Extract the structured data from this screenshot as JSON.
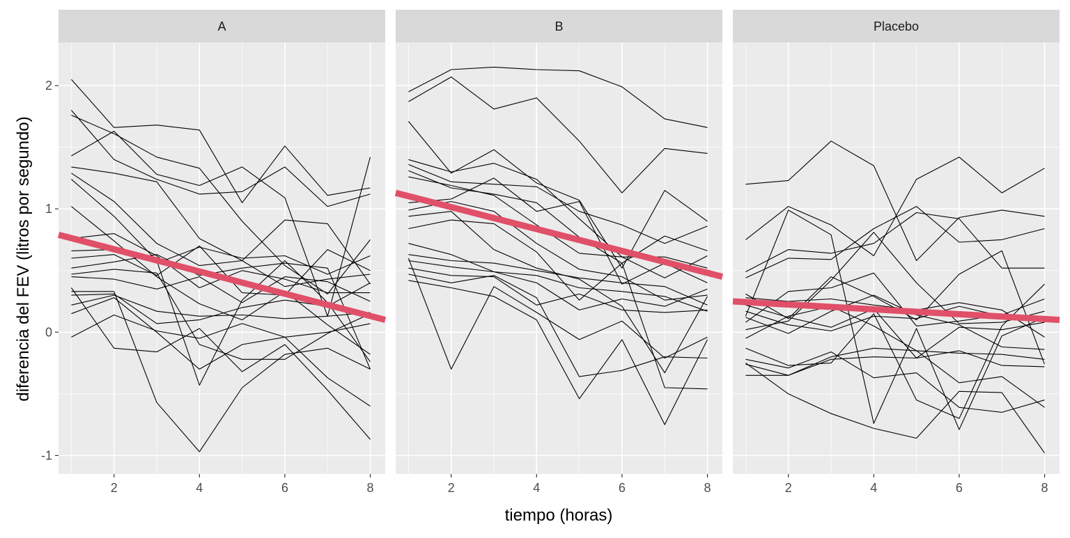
{
  "chart_data": {
    "type": "line",
    "xlabel": "tiempo (horas)",
    "ylabel": "diferencia del FEV (litros por segundo)",
    "xlim": [
      0.7,
      8.35
    ],
    "ylim": [
      -1.15,
      2.35
    ],
    "x_ticks": [
      2,
      4,
      6,
      8
    ],
    "y_ticks": [
      2,
      1,
      0,
      -1
    ],
    "grid": true,
    "trend_color": "#e05068",
    "line_color": "#000000",
    "x": [
      1,
      2,
      3,
      4,
      5,
      6,
      7,
      8
    ],
    "panels": [
      {
        "label": "A",
        "trend": [
          0.79,
          0.1
        ],
        "series": [
          [
            2.05,
            1.66,
            1.68,
            1.64,
            1.05,
            1.51,
            1.11,
            1.17
          ],
          [
            1.8,
            1.4,
            1.24,
            1.12,
            1.14,
            1.34,
            1.02,
            1.12
          ],
          [
            1.76,
            1.61,
            1.42,
            1.33,
            0.9,
            0.54,
            0.31,
            0.75
          ],
          [
            1.43,
            1.63,
            1.28,
            1.19,
            1.34,
            1.09,
            0.13,
            1.42
          ],
          [
            1.34,
            1.29,
            1.22,
            0.76,
            0.58,
            0.37,
            0.43,
            0.47
          ],
          [
            1.29,
            1.06,
            0.72,
            0.54,
            0.58,
            0.91,
            0.88,
            0.39
          ],
          [
            1.24,
            0.94,
            0.58,
            -0.43,
            0.26,
            0.58,
            0.24,
            -0.24
          ],
          [
            1.02,
            0.74,
            0.45,
            0.23,
            0.1,
            0.33,
            0.06,
            -0.18
          ],
          [
            0.76,
            0.8,
            0.62,
            0.36,
            0.5,
            0.43,
            0.32,
            0.32
          ],
          [
            0.66,
            0.67,
            0.56,
            0.69,
            0.6,
            0.62,
            0.47,
            0.62
          ],
          [
            0.6,
            0.63,
            0.46,
            0.7,
            0.32,
            0.3,
            0.67,
            0.5
          ],
          [
            0.52,
            0.57,
            0.63,
            0.46,
            0.52,
            0.56,
            0.52,
            -0.3
          ],
          [
            0.47,
            0.51,
            0.48,
            -0.1,
            -0.22,
            -0.22,
            -0.01,
            0.15
          ],
          [
            0.45,
            0.43,
            0.35,
            0.45,
            0.24,
            0.45,
            0.41,
            0.25
          ],
          [
            0.33,
            0.33,
            -0.57,
            -0.97,
            -0.45,
            -0.18,
            -0.13,
            -0.3
          ],
          [
            0.3,
            0.31,
            0.07,
            0.1,
            0.2,
            0.26,
            0.21,
            0.4
          ],
          [
            0.22,
            0.3,
            0.17,
            0.13,
            0.14,
            0.11,
            0.13,
            0.16
          ],
          [
            0.15,
            0.28,
            0.0,
            -0.3,
            -0.1,
            -0.04,
            0.0,
            0.07
          ],
          [
            -0.04,
            0.14,
            0.01,
            -0.05,
            0.07,
            -0.04,
            -0.37,
            -0.6
          ],
          [
            0.36,
            -0.13,
            -0.16,
            0.03,
            -0.32,
            -0.1,
            -0.47,
            -0.87
          ]
        ]
      },
      {
        "label": "B",
        "trend": [
          1.13,
          0.45
        ],
        "series": [
          [
            1.95,
            2.13,
            2.15,
            2.13,
            2.12,
            1.99,
            1.73,
            1.66
          ],
          [
            1.87,
            2.07,
            1.81,
            1.9,
            1.55,
            1.13,
            1.49,
            1.45
          ],
          [
            1.71,
            1.29,
            1.48,
            1.21,
            1.07,
            0.52,
            1.15,
            0.9
          ],
          [
            1.4,
            1.3,
            1.37,
            1.24,
            0.92,
            0.61,
            0.44,
            0.62
          ],
          [
            1.36,
            1.22,
            1.2,
            1.18,
            0.98,
            0.87,
            0.72,
            0.86
          ],
          [
            1.31,
            1.17,
            1.12,
            1.05,
            0.77,
            0.56,
            0.78,
            0.66
          ],
          [
            1.26,
            1.19,
            1.11,
            0.87,
            0.64,
            0.61,
            0.61,
            0.52
          ],
          [
            1.05,
            1.08,
            1.25,
            0.98,
            1.06,
            0.39,
            0.56,
            0.4
          ],
          [
            0.99,
            1.06,
            0.98,
            0.72,
            0.51,
            0.45,
            0.26,
            0.3
          ],
          [
            0.94,
            0.98,
            0.67,
            0.52,
            0.43,
            0.21,
            -0.33,
            0.29
          ],
          [
            0.84,
            0.91,
            0.88,
            0.65,
            0.26,
            0.56,
            -0.45,
            -0.46
          ],
          [
            0.72,
            0.63,
            0.49,
            0.4,
            0.18,
            0.27,
            0.21,
            0.35
          ],
          [
            0.63,
            0.58,
            0.56,
            0.5,
            0.44,
            0.4,
            0.37,
            0.22
          ],
          [
            0.58,
            0.53,
            0.49,
            0.46,
            0.36,
            0.33,
            0.29,
            0.17
          ],
          [
            0.52,
            0.46,
            0.45,
            0.22,
            0.31,
            0.18,
            0.16,
            0.18
          ],
          [
            0.47,
            0.4,
            0.46,
            0.28,
            -0.36,
            -0.31,
            -0.2,
            -0.21
          ],
          [
            0.42,
            0.36,
            0.29,
            0.1,
            -0.54,
            -0.06,
            -0.75,
            -0.06
          ],
          [
            0.6,
            -0.3,
            0.37,
            0.16,
            -0.06,
            0.09,
            -0.21,
            -0.04
          ]
        ]
      },
      {
        "label": "Placebo",
        "trend": [
          0.25,
          0.1
        ],
        "series": [
          [
            1.2,
            1.23,
            1.55,
            1.35,
            0.58,
            0.93,
            0.99,
            0.94
          ],
          [
            0.75,
            1.02,
            0.87,
            0.62,
            1.24,
            1.42,
            1.13,
            1.33
          ],
          [
            0.49,
            0.67,
            0.64,
            0.72,
            0.97,
            0.92,
            0.52,
            0.52
          ],
          [
            0.44,
            0.6,
            0.59,
            0.84,
            1.02,
            0.73,
            0.75,
            0.84
          ],
          [
            0.31,
            0.11,
            0.45,
            0.29,
            0.1,
            0.47,
            0.66,
            -0.26
          ],
          [
            0.28,
            0.25,
            0.27,
            0.22,
            0.18,
            0.24,
            0.18,
            -0.04
          ],
          [
            0.22,
            0.12,
            0.04,
            0.19,
            -0.21,
            0.04,
            0.02,
            0.08
          ],
          [
            0.17,
            0.06,
            0.01,
            0.13,
            0.11,
            0.21,
            0.13,
            0.1
          ],
          [
            0.12,
            -0.01,
            0.17,
            0.3,
            0.14,
            0.06,
            -0.12,
            -0.14
          ],
          [
            0.08,
            0.33,
            0.36,
            0.48,
            0.05,
            0.09,
            0.14,
            0.27
          ],
          [
            0.02,
            0.09,
            0.42,
            0.81,
            0.4,
            0.07,
            0.08,
            0.17
          ],
          [
            -0.05,
            0.13,
            0.21,
            0.05,
            -0.15,
            -0.41,
            -0.36,
            -0.61
          ],
          [
            -0.13,
            -0.27,
            -0.25,
            0.15,
            -0.55,
            -0.7,
            0.05,
            0.39
          ],
          [
            -0.22,
            -0.29,
            -0.16,
            -0.37,
            -0.33,
            -0.61,
            -0.65,
            -0.55
          ],
          [
            -0.26,
            -0.35,
            -0.2,
            -0.13,
            -0.15,
            -0.17,
            -0.18,
            -0.22
          ],
          [
            -0.35,
            -0.35,
            -0.22,
            -0.2,
            -0.21,
            -0.15,
            -0.27,
            -0.28
          ],
          [
            -0.25,
            -0.5,
            -0.66,
            -0.78,
            -0.86,
            -0.48,
            -0.49,
            -0.98
          ],
          [
            0.13,
            0.99,
            0.79,
            -0.74,
            0.03,
            -0.79,
            -0.03,
            0.12
          ]
        ]
      }
    ]
  }
}
